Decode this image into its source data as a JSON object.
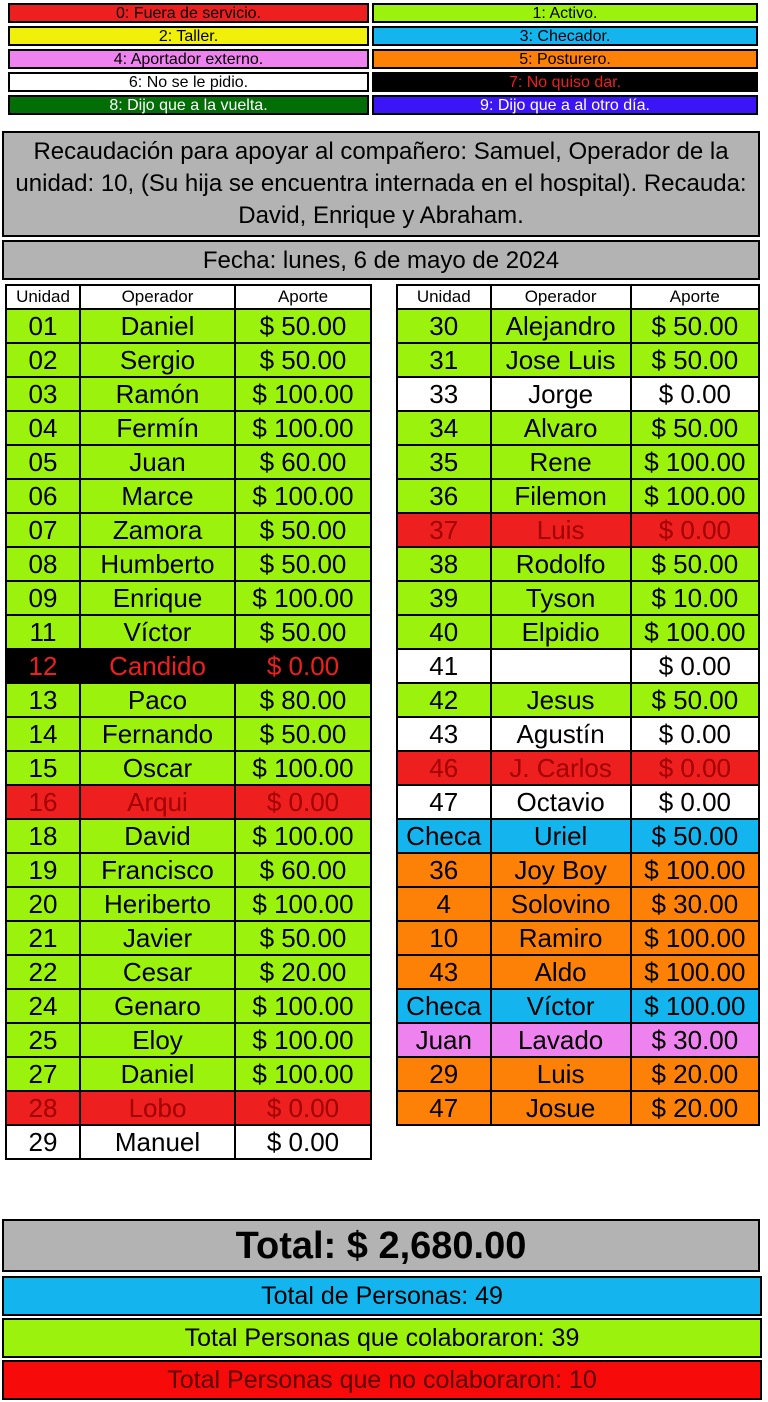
{
  "legend": [
    {
      "label": "0: Fuera de servicio.",
      "status": 0
    },
    {
      "label": "1: Activo.",
      "status": 1
    },
    {
      "label": "2: Taller.",
      "status": 2
    },
    {
      "label": "3: Checador.",
      "status": 3
    },
    {
      "label": "4: Aportador externo.",
      "status": 4
    },
    {
      "label": "5: Posturero.",
      "status": 5
    },
    {
      "label": "6: No se le pidio.",
      "status": 6
    },
    {
      "label": "7: No quiso dar.",
      "status": 7
    },
    {
      "label": "8: Dijo que a la vuelta.",
      "status": 8
    },
    {
      "label": "9: Dijo que a al otro día.",
      "status": 9
    }
  ],
  "title": "Recaudación para apoyar al compañero: Samuel, Operador de la unidad: 10, (Su hija se encuentra internada en el hospital). Recauda: David, Enrique y Abraham.",
  "fecha": "Fecha: lunes, 6 de mayo de 2024",
  "headers": {
    "unidad": "Unidad",
    "operador": "Operador",
    "aporte": "Aporte"
  },
  "status_colors": {
    "0": "#ee1f1f",
    "1": "#9bf20c",
    "2": "#f0f00a",
    "3": "#14b5ef",
    "4": "#ee82ee",
    "5": "#fd8106",
    "6": "#ffffff",
    "7": "#000000",
    "8": "#036d06",
    "9": "#3b15f5"
  },
  "left_rows": [
    {
      "unidad": "01",
      "operador": "Daniel",
      "aporte": "$ 50.00",
      "status": 1
    },
    {
      "unidad": "02",
      "operador": "Sergio",
      "aporte": "$ 50.00",
      "status": 1
    },
    {
      "unidad": "03",
      "operador": "Ramón",
      "aporte": "$ 100.00",
      "status": 1
    },
    {
      "unidad": "04",
      "operador": "Fermín",
      "aporte": "$ 100.00",
      "status": 1
    },
    {
      "unidad": "05",
      "operador": "Juan",
      "aporte": "$ 60.00",
      "status": 1
    },
    {
      "unidad": "06",
      "operador": "Marce",
      "aporte": "$ 100.00",
      "status": 1
    },
    {
      "unidad": "07",
      "operador": "Zamora",
      "aporte": "$ 50.00",
      "status": 1
    },
    {
      "unidad": "08",
      "operador": "Humberto",
      "aporte": "$ 50.00",
      "status": 1
    },
    {
      "unidad": "09",
      "operador": "Enrique",
      "aporte": "$ 100.00",
      "status": 1
    },
    {
      "unidad": "11",
      "operador": "Víctor",
      "aporte": "$ 50.00",
      "status": 1
    },
    {
      "unidad": "12",
      "operador": "Candido",
      "aporte": "$ 0.00",
      "status": 7
    },
    {
      "unidad": "13",
      "operador": "Paco",
      "aporte": "$ 80.00",
      "status": 1
    },
    {
      "unidad": "14",
      "operador": "Fernando",
      "aporte": "$ 50.00",
      "status": 1
    },
    {
      "unidad": "15",
      "operador": "Oscar",
      "aporte": "$ 100.00",
      "status": 1
    },
    {
      "unidad": "16",
      "operador": "Arqui",
      "aporte": "$ 0.00",
      "status": 0
    },
    {
      "unidad": "18",
      "operador": "David",
      "aporte": "$ 100.00",
      "status": 1
    },
    {
      "unidad": "19",
      "operador": "Francisco",
      "aporte": "$ 60.00",
      "status": 1
    },
    {
      "unidad": "20",
      "operador": "Heriberto",
      "aporte": "$ 100.00",
      "status": 1
    },
    {
      "unidad": "21",
      "operador": "Javier",
      "aporte": "$ 50.00",
      "status": 1
    },
    {
      "unidad": "22",
      "operador": "Cesar",
      "aporte": "$ 20.00",
      "status": 1
    },
    {
      "unidad": "24",
      "operador": "Genaro",
      "aporte": "$ 100.00",
      "status": 1
    },
    {
      "unidad": "25",
      "operador": "Eloy",
      "aporte": "$ 100.00",
      "status": 1
    },
    {
      "unidad": "27",
      "operador": "Daniel",
      "aporte": "$ 100.00",
      "status": 1
    },
    {
      "unidad": "28",
      "operador": "Lobo",
      "aporte": "$ 0.00",
      "status": 0
    },
    {
      "unidad": "29",
      "operador": "Manuel",
      "aporte": "$ 0.00",
      "status": 6
    }
  ],
  "right_rows": [
    {
      "unidad": "30",
      "operador": "Alejandro",
      "aporte": "$ 50.00",
      "status": 1
    },
    {
      "unidad": "31",
      "operador": "Jose Luis",
      "aporte": "$ 50.00",
      "status": 1
    },
    {
      "unidad": "33",
      "operador": "Jorge",
      "aporte": "$ 0.00",
      "status": 6
    },
    {
      "unidad": "34",
      "operador": "Alvaro",
      "aporte": "$ 50.00",
      "status": 1
    },
    {
      "unidad": "35",
      "operador": "Rene",
      "aporte": "$ 100.00",
      "status": 1
    },
    {
      "unidad": "36",
      "operador": "Filemon",
      "aporte": "$ 100.00",
      "status": 1
    },
    {
      "unidad": "37",
      "operador": "Luis",
      "aporte": "$ 0.00",
      "status": 0
    },
    {
      "unidad": "38",
      "operador": "Rodolfo",
      "aporte": "$ 50.00",
      "status": 1
    },
    {
      "unidad": "39",
      "operador": "Tyson",
      "aporte": "$ 10.00",
      "status": 1
    },
    {
      "unidad": "40",
      "operador": "Elpidio",
      "aporte": "$ 100.00",
      "status": 1
    },
    {
      "unidad": "41",
      "operador": "",
      "aporte": "$ 0.00",
      "status": 6
    },
    {
      "unidad": "42",
      "operador": "Jesus",
      "aporte": "$ 50.00",
      "status": 1
    },
    {
      "unidad": "43",
      "operador": "Agustín",
      "aporte": "$ 0.00",
      "status": 6
    },
    {
      "unidad": "46",
      "operador": "J. Carlos",
      "aporte": "$ 0.00",
      "status": 0
    },
    {
      "unidad": "47",
      "operador": "Octavio",
      "aporte": "$ 0.00",
      "status": 6
    },
    {
      "unidad": "Checa",
      "operador": "Uriel",
      "aporte": "$ 50.00",
      "status": 3
    },
    {
      "unidad": "36",
      "operador": "Joy Boy",
      "aporte": "$ 100.00",
      "status": 5
    },
    {
      "unidad": "4",
      "operador": "Solovino",
      "aporte": "$ 30.00",
      "status": 5
    },
    {
      "unidad": "10",
      "operador": "Ramiro",
      "aporte": "$ 100.00",
      "status": 5
    },
    {
      "unidad": "43",
      "operador": "Aldo",
      "aporte": "$ 100.00",
      "status": 5
    },
    {
      "unidad": "Checa",
      "operador": "Víctor",
      "aporte": "$ 100.00",
      "status": 3
    },
    {
      "unidad": "Juan",
      "operador": "Lavado",
      "aporte": "$ 30.00",
      "status": 4
    },
    {
      "unidad": "29",
      "operador": "Luis",
      "aporte": "$ 20.00",
      "status": 5
    },
    {
      "unidad": "47",
      "operador": "Josue",
      "aporte": "$ 20.00",
      "status": 5
    }
  ],
  "total": "Total: $ 2,680.00",
  "total_personas": "Total de Personas: 49",
  "colaboraron": "Total Personas que colaboraron: 39",
  "no_colaboraron": "Total Personas que no colaboraron: 10"
}
